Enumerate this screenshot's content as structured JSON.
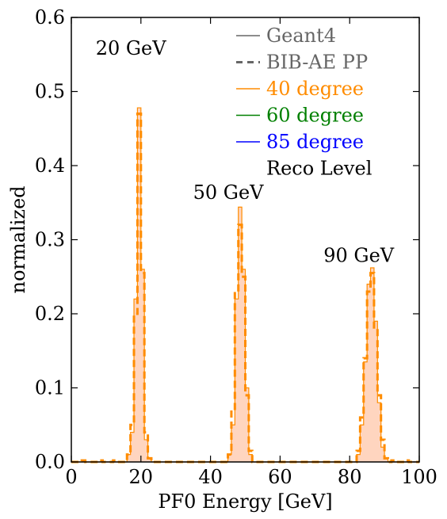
{
  "chart_data": {
    "type": "histogram",
    "xlabel": "PF0 Energy [GeV]",
    "ylabel": "normalized",
    "xlim": [
      0,
      100
    ],
    "ylim": [
      0,
      0.6
    ],
    "xticks": [
      0,
      20,
      40,
      60,
      80,
      100
    ],
    "xtick_labels": [
      "0",
      "20",
      "40",
      "60",
      "80",
      "100"
    ],
    "yticks": [
      0.0,
      0.1,
      0.2,
      0.3,
      0.4,
      0.5,
      0.6
    ],
    "ytick_labels": [
      "0.0",
      "0.1",
      "0.2",
      "0.3",
      "0.4",
      "0.5",
      "0.6"
    ],
    "grid": false,
    "legend_placement": "top-right",
    "legend": [
      {
        "label": "Geant4",
        "style": "solid",
        "color": "#666666"
      },
      {
        "label": "BIB-AE PP",
        "style": "dashed",
        "color": "#666666"
      },
      {
        "label": "40 degree",
        "style": "solid",
        "color": "#ff8c00"
      },
      {
        "label": "60 degree",
        "style": "solid",
        "color": "#008000"
      },
      {
        "label": "85 degree",
        "style": "solid",
        "color": "#0000ff"
      },
      {
        "label": "Reco Level",
        "style": "none",
        "color": "#000000"
      }
    ],
    "annotations": [
      {
        "text": "20 GeV",
        "x": 7,
        "y": 0.55
      },
      {
        "text": "50 GeV",
        "x": 35,
        "y": 0.355
      },
      {
        "text": "90 GeV",
        "x": 72.5,
        "y": 0.27
      }
    ],
    "bin_width": 1,
    "series": [
      {
        "name": "Geant4",
        "style": "step-filled",
        "color": "#ff8c00",
        "fill": "#ffd5bf",
        "bins": [
          [
            16,
            0.01
          ],
          [
            17,
            0.04
          ],
          [
            18,
            0.22
          ],
          [
            19,
            0.478
          ],
          [
            20,
            0.26
          ],
          [
            21,
            0.03
          ],
          [
            22,
            0.005
          ],
          [
            45,
            0.01
          ],
          [
            46,
            0.05
          ],
          [
            47,
            0.22
          ],
          [
            48,
            0.344
          ],
          [
            49,
            0.26
          ],
          [
            50,
            0.1
          ],
          [
            51,
            0.01
          ],
          [
            82,
            0.01
          ],
          [
            83,
            0.05
          ],
          [
            84,
            0.135
          ],
          [
            85,
            0.24
          ],
          [
            86,
            0.262
          ],
          [
            87,
            0.19
          ],
          [
            88,
            0.08
          ],
          [
            89,
            0.02
          ],
          [
            90,
            0.005
          ]
        ]
      },
      {
        "name": "BIB-AE PP",
        "style": "step-dashed",
        "color": "#ff8c00",
        "bins": [
          [
            3,
            0.002
          ],
          [
            8,
            0.002
          ],
          [
            12,
            0.002
          ],
          [
            16,
            0.01
          ],
          [
            17,
            0.05
          ],
          [
            18,
            0.2
          ],
          [
            19,
            0.47
          ],
          [
            20,
            0.255
          ],
          [
            21,
            0.04
          ],
          [
            22,
            0.005
          ],
          [
            45,
            0.01
          ],
          [
            46,
            0.07
          ],
          [
            47,
            0.23
          ],
          [
            48,
            0.32
          ],
          [
            49,
            0.25
          ],
          [
            50,
            0.09
          ],
          [
            51,
            0.015
          ],
          [
            82,
            0.015
          ],
          [
            83,
            0.06
          ],
          [
            84,
            0.14
          ],
          [
            85,
            0.23
          ],
          [
            86,
            0.255
          ],
          [
            87,
            0.18
          ],
          [
            88,
            0.09
          ],
          [
            89,
            0.03
          ],
          [
            90,
            0.005
          ],
          [
            92,
            0.002
          ],
          [
            96,
            0.002
          ]
        ]
      }
    ]
  }
}
